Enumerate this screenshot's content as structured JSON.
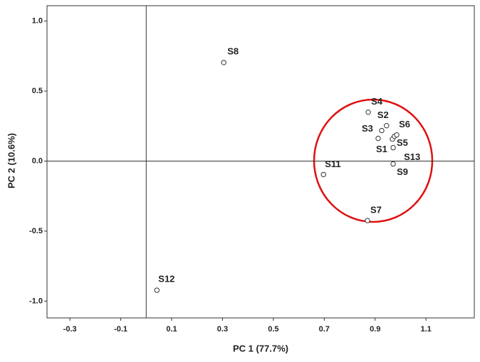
{
  "chart_data": {
    "type": "scatter",
    "x_label": "PC 1 (77.7%)",
    "y_label": "PC 2 (10.6%)",
    "labels": [
      "S8",
      "S4",
      "S2",
      "S3",
      "S1",
      "S5",
      null,
      "S6",
      "S13",
      "S9",
      "S11",
      "S7",
      "S12"
    ],
    "x": [
      0.305,
      0.873,
      0.945,
      0.926,
      0.912,
      0.968,
      0.976,
      0.985,
      0.971,
      0.971,
      0.697,
      0.87,
      0.042
    ],
    "y": [
      0.704,
      0.349,
      0.253,
      0.218,
      0.162,
      0.157,
      0.177,
      0.187,
      0.096,
      -0.02,
      -0.096,
      -0.425,
      -0.922
    ],
    "xlim": [
      -0.39,
      1.29
    ],
    "ylim": [
      -1.12,
      1.11
    ],
    "xticks": [
      -0.3,
      -0.1,
      0.1,
      0.3,
      0.5,
      0.7,
      0.9,
      1.1
    ],
    "yticks": [
      {
        "value": 1,
        "label": "1.0"
      },
      0.5,
      {
        "value": 0,
        "label": "0.0"
      },
      -0.5,
      {
        "value": -1,
        "label": "-1.0"
      }
    ],
    "color": "#333333"
  }
}
